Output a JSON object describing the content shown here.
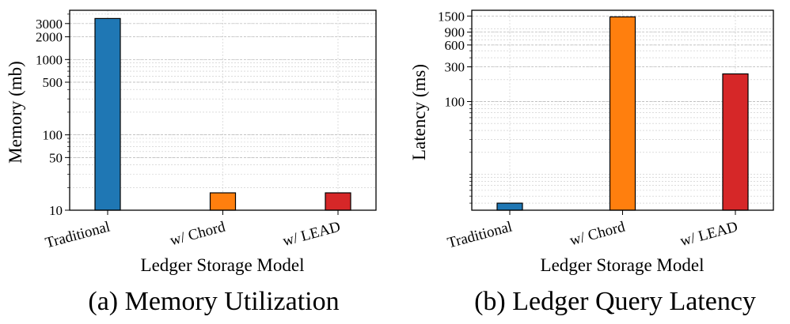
{
  "chart_data": [
    {
      "type": "bar",
      "title": "",
      "caption": "(a) Memory Utilization",
      "xlabel": "Ledger Storage Model",
      "ylabel": "Memory (mb)",
      "yscale": "log",
      "ylim": [
        10,
        4500
      ],
      "yticks": [
        10,
        50,
        100,
        500,
        1000,
        2000,
        3000
      ],
      "categories": [
        "Traditional",
        "w/ Chord",
        "w/ LEAD"
      ],
      "values": [
        3500,
        17,
        17
      ],
      "colors": [
        "#1f77b4",
        "#ff7f0e",
        "#d62728"
      ],
      "grid": true
    },
    {
      "type": "bar",
      "title": "",
      "caption": "(b) Ledger Query Latency",
      "xlabel": "Ledger Storage Model",
      "ylabel": "Latency (ms)",
      "yscale": "log",
      "ylim": [
        3.2,
        1800
      ],
      "yticks": [
        100,
        300,
        600,
        900,
        1500
      ],
      "categories": [
        "Traditional",
        "w/ Chord",
        "w/ LEAD"
      ],
      "values": [
        4,
        1460,
        240
      ],
      "colors": [
        "#1f77b4",
        "#ff7f0e",
        "#d62728"
      ],
      "grid": true
    }
  ]
}
